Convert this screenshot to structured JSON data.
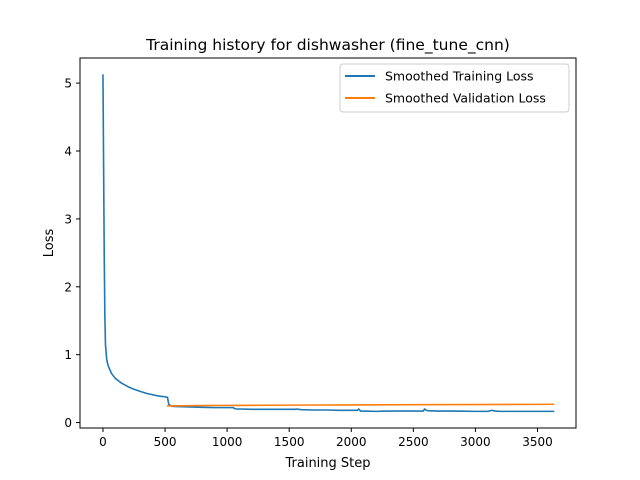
{
  "chart_data": {
    "type": "line",
    "title": "Training history for dishwasher (fine_tune_cnn)",
    "xlabel": "Training Step",
    "ylabel": "Loss",
    "xlim": [
      -185,
      3810
    ],
    "ylim": [
      -0.08,
      5.37
    ],
    "xticks": [
      0,
      500,
      1000,
      1500,
      2000,
      2500,
      3000,
      3500
    ],
    "yticks": [
      0,
      1,
      2,
      3,
      4,
      5
    ],
    "grid": false,
    "legend_position": "top-right",
    "series": [
      {
        "name": "Smoothed Training Loss",
        "color": "#1f77b4",
        "x": [
          0,
          5,
          10,
          15,
          20,
          30,
          40,
          50,
          70,
          100,
          150,
          200,
          250,
          300,
          350,
          400,
          450,
          500,
          520,
          530,
          545,
          560,
          600,
          700,
          800,
          900,
          1000,
          1050,
          1060,
          1075,
          1100,
          1200,
          1300,
          1400,
          1500,
          1550,
          1560,
          1575,
          1600,
          1700,
          1800,
          1900,
          2000,
          2050,
          2060,
          2075,
          2100,
          2200,
          2300,
          2400,
          2500,
          2580,
          2590,
          2605,
          2620,
          2700,
          2800,
          2900,
          3000,
          3100,
          3130,
          3145,
          3160,
          3200,
          3300,
          3400,
          3500,
          3630
        ],
        "y": [
          5.12,
          3.8,
          2.5,
          1.6,
          1.15,
          0.93,
          0.85,
          0.8,
          0.72,
          0.65,
          0.58,
          0.53,
          0.49,
          0.46,
          0.43,
          0.41,
          0.39,
          0.38,
          0.37,
          0.27,
          0.25,
          0.24,
          0.235,
          0.23,
          0.225,
          0.22,
          0.22,
          0.22,
          0.205,
          0.2,
          0.2,
          0.195,
          0.195,
          0.195,
          0.195,
          0.195,
          0.2,
          0.195,
          0.19,
          0.185,
          0.185,
          0.18,
          0.18,
          0.18,
          0.2,
          0.17,
          0.17,
          0.165,
          0.17,
          0.17,
          0.17,
          0.17,
          0.2,
          0.18,
          0.175,
          0.17,
          0.17,
          0.168,
          0.165,
          0.165,
          0.18,
          0.175,
          0.17,
          0.165,
          0.165,
          0.165,
          0.165,
          0.165
        ]
      },
      {
        "name": "Smoothed Validation Loss",
        "color": "#ff7f0e",
        "x": [
          520,
          800,
          1000,
          1500,
          2000,
          2500,
          3000,
          3500,
          3630
        ],
        "y": [
          0.245,
          0.25,
          0.252,
          0.257,
          0.26,
          0.263,
          0.265,
          0.268,
          0.27
        ]
      }
    ]
  }
}
